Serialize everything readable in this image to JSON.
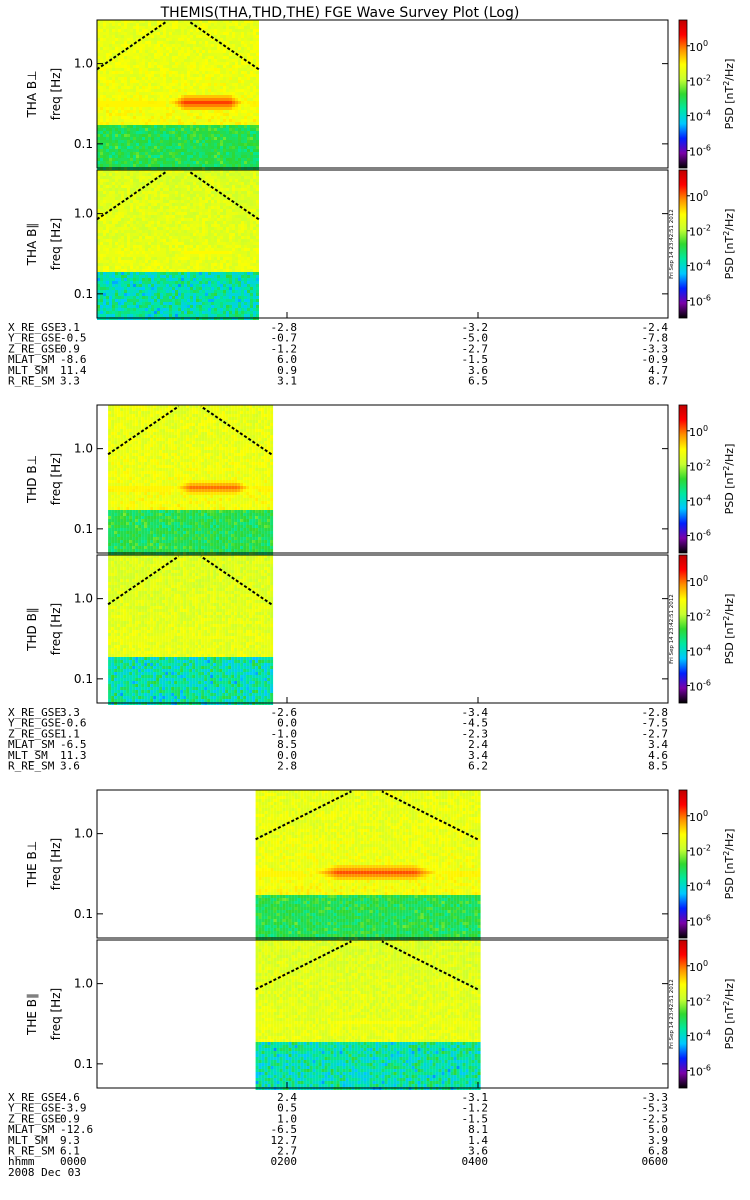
{
  "chart_data": {
    "type": "heatmap",
    "title": "THEMIS(THA,THD,THE) FGE Wave Survey Plot (Log)",
    "freq_axis": {
      "label": "freq [Hz]",
      "scale": "log",
      "range": [
        0.05,
        3.5
      ],
      "ticks": [
        "1.0",
        "0.1"
      ]
    },
    "colorbar": {
      "label": "PSD [nT²/Hz]",
      "label_prefix": "PSD [nT",
      "label_sup": "2",
      "label_suffix": "/Hz]",
      "scale": "log",
      "range": [
        1e-07,
        30
      ],
      "ticks": [
        {
          "base": "10",
          "exp": "0",
          "value": 1
        },
        {
          "base": "10",
          "exp": "-2",
          "value": 0.01
        },
        {
          "base": "10",
          "exp": "-4",
          "value": 0.0001
        },
        {
          "base": "10",
          "exp": "-6",
          "value": 1e-06
        }
      ],
      "colors": [
        "#000000",
        "#7a00a8",
        "#0020ff",
        "#00c8ff",
        "#00e8a0",
        "#30d830",
        "#c8ff30",
        "#ffff00",
        "#ff9000",
        "#ff0000",
        "#c00000"
      ]
    },
    "stamp": "Fri Sep 14 23:42:51 2012",
    "time_axis": {
      "labels": [
        "0000",
        "0200",
        "0400",
        "0600"
      ],
      "range": [
        "00:00",
        "06:00"
      ]
    },
    "ephem_labels": [
      "X_RE_GSE",
      "Y_RE_GSE",
      "Z_RE_GSE",
      "MLAT_SM",
      "MLT_SM",
      "R_RE_SM"
    ],
    "probes": [
      {
        "probe": "THA",
        "panels": [
          {
            "label": "THA B⊥",
            "component": "perp"
          },
          {
            "label": "THA B∥",
            "component": "par"
          }
        ],
        "data_start": "00:00",
        "data_end": "01:42",
        "band": {
          "freq": 0.34,
          "start": "00:42",
          "end": "01:35",
          "peak_log_psd": 0.3
        },
        "ephem": [
          [
            "3.1",
            "-2.8",
            "-3.2",
            "-2.4"
          ],
          [
            "-0.5",
            "-0.7",
            "-5.0",
            "-7.8"
          ],
          [
            "0.9",
            "-1.2",
            "-2.7",
            "-3.3"
          ],
          [
            "-8.6",
            "6.0",
            "-1.5",
            "-0.9"
          ],
          [
            "11.4",
            "0.9",
            "3.6",
            "4.7"
          ],
          [
            "3.3",
            "3.1",
            "6.5",
            "8.7"
          ]
        ]
      },
      {
        "probe": "THD",
        "panels": [
          {
            "label": "THD B⊥",
            "component": "perp"
          },
          {
            "label": "THD B∥",
            "component": "par"
          }
        ],
        "data_start": "00:07",
        "data_end": "01:50",
        "band": {
          "freq": 0.34,
          "start": "00:45",
          "end": "01:40",
          "peak_log_psd": 0.0
        },
        "ephem": [
          [
            "3.3",
            "-2.6",
            "-3.4",
            "-2.8"
          ],
          [
            "-0.6",
            "0.0",
            "-4.5",
            "-7.5"
          ],
          [
            "1.1",
            "-1.0",
            "-2.3",
            "-2.7"
          ],
          [
            "-6.5",
            "8.5",
            "2.4",
            "3.4"
          ],
          [
            "11.3",
            "0.0",
            "3.4",
            "4.6"
          ],
          [
            "3.6",
            "2.8",
            "6.2",
            "8.5"
          ]
        ]
      },
      {
        "probe": "THE",
        "panels": [
          {
            "label": "THE B⊥",
            "component": "perp"
          },
          {
            "label": "THE B∥",
            "component": "par"
          }
        ],
        "data_start": "01:40",
        "data_end": "04:00",
        "band": {
          "freq": 0.34,
          "start": "02:10",
          "end": "03:40",
          "peak_log_psd": 0.2
        },
        "ephem": [
          [
            "4.6",
            "2.4",
            "-3.1",
            "-3.3"
          ],
          [
            "-3.9",
            "0.5",
            "-1.2",
            "-5.3"
          ],
          [
            "0.9",
            "1.0",
            "-1.5",
            "-2.5"
          ],
          [
            "-12.6",
            "-6.5",
            "8.1",
            "5.0"
          ],
          [
            "9.3",
            "12.7",
            "1.4",
            "3.9"
          ],
          [
            "6.1",
            "2.7",
            "3.6",
            "6.8"
          ]
        ]
      }
    ],
    "footer": {
      "hhmm_label": "hhmm",
      "date": "2008 Dec 03"
    }
  }
}
